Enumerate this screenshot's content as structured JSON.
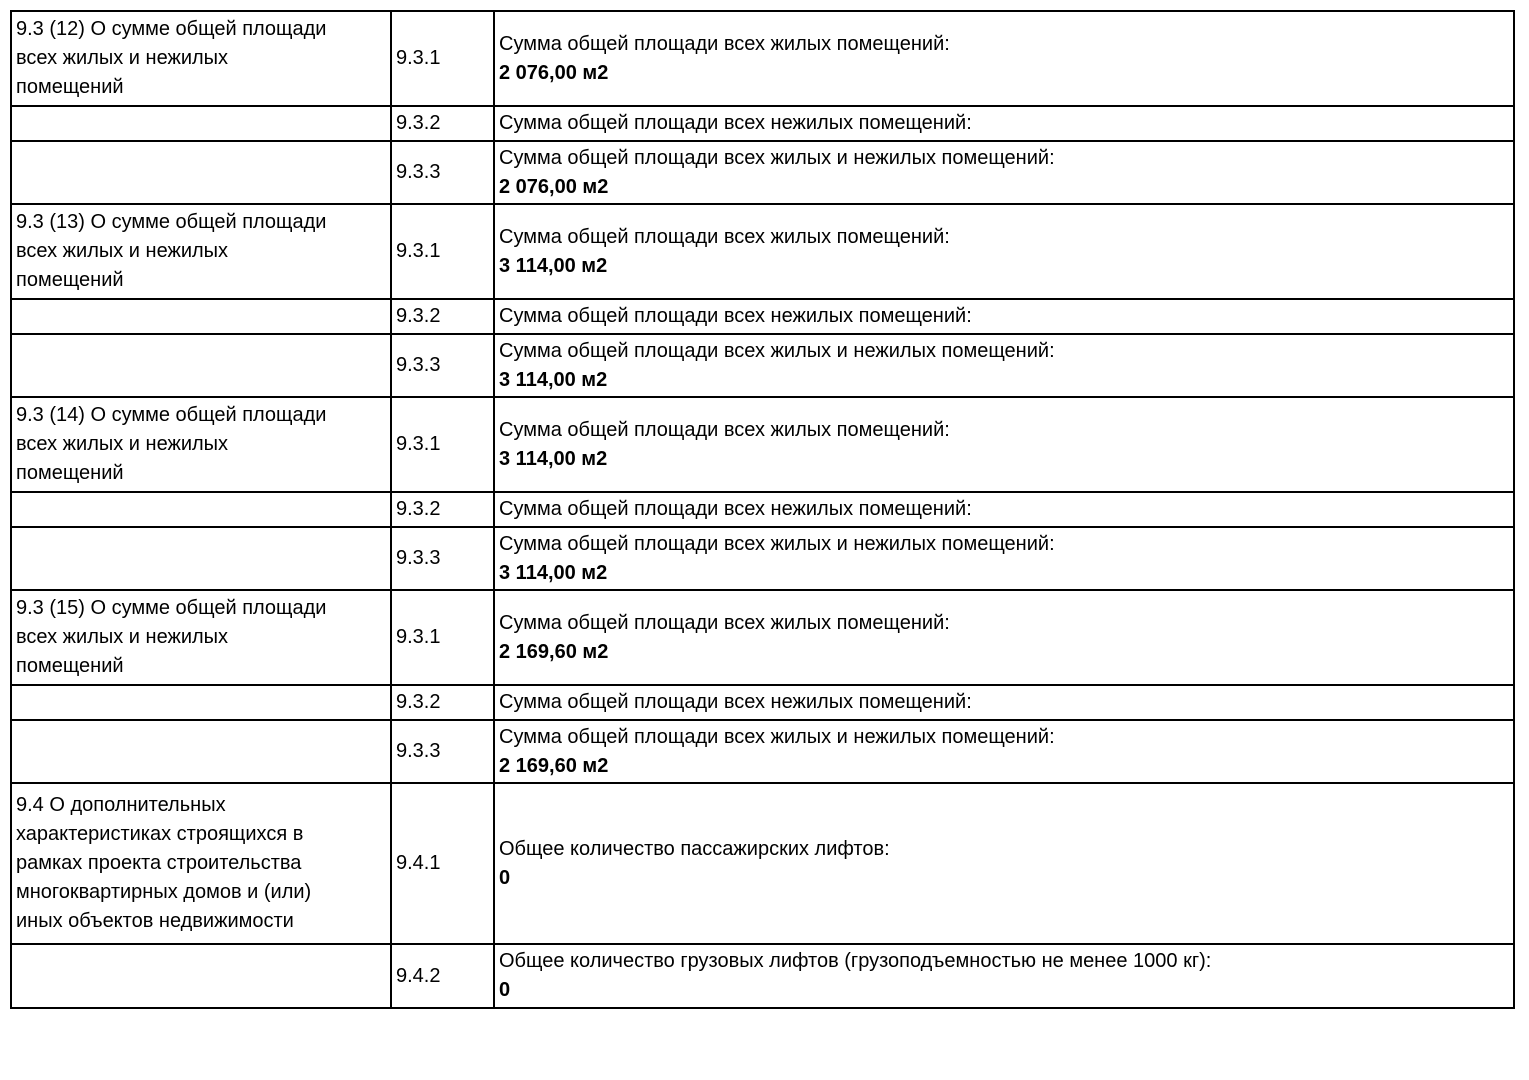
{
  "page": {
    "background_color": "#ffffff",
    "text_color": "#000000",
    "border_color": "#000000"
  },
  "table": {
    "blocks": [
      {
        "section_label": "9.3 (12) О сумме общей площади всех жилых и нежилых помещений",
        "rows": [
          {
            "num": "9.3.1",
            "label": "Сумма общей площади всех жилых помещений:",
            "value": "2 076,00 м2"
          },
          {
            "num": "9.3.2",
            "label": "Сумма общей площади всех нежилых помещений:",
            "value": ""
          },
          {
            "num": "9.3.3",
            "label": "Сумма общей площади всех жилых и нежилых помещений:",
            "value": "2 076,00 м2"
          }
        ]
      },
      {
        "section_label": "9.3 (13) О сумме общей площади всех жилых и нежилых помещений",
        "rows": [
          {
            "num": "9.3.1",
            "label": "Сумма общей площади всех жилых помещений:",
            "value": "3 114,00 м2"
          },
          {
            "num": "9.3.2",
            "label": "Сумма общей площади всех нежилых помещений:",
            "value": ""
          },
          {
            "num": "9.3.3",
            "label": "Сумма общей площади всех жилых и нежилых помещений:",
            "value": "3 114,00 м2"
          }
        ]
      },
      {
        "section_label": "9.3 (14) О сумме общей площади всех жилых и нежилых помещений",
        "rows": [
          {
            "num": "9.3.1",
            "label": "Сумма общей площади всех жилых помещений:",
            "value": "3 114,00 м2"
          },
          {
            "num": "9.3.2",
            "label": "Сумма общей площади всех нежилых помещений:",
            "value": ""
          },
          {
            "num": "9.3.3",
            "label": "Сумма общей площади всех жилых и нежилых помещений:",
            "value": "3 114,00 м2"
          }
        ]
      },
      {
        "section_label": "9.3 (15) О сумме общей площади всех жилых и нежилых помещений",
        "rows": [
          {
            "num": "9.3.1",
            "label": "Сумма общей площади всех жилых помещений:",
            "value": "2 169,60 м2"
          },
          {
            "num": "9.3.2",
            "label": "Сумма общей площади всех нежилых помещений:",
            "value": ""
          },
          {
            "num": "9.3.3",
            "label": "Сумма общей площади всех жилых и нежилых помещений:",
            "value": "2 169,60 м2"
          }
        ]
      },
      {
        "section_label": "9.4 О дополнительных характеристиках строящихся в рамках проекта строительства многоквартирных домов и (или) иных объектов недвижимости",
        "rows": [
          {
            "num": "9.4.1",
            "label": "Общее количество пассажирских лифтов:",
            "value": "0"
          },
          {
            "num": "9.4.2",
            "label": "Общее количество грузовых лифтов (грузоподъемностью не менее 1000 кг):",
            "value": "0"
          }
        ]
      }
    ]
  }
}
